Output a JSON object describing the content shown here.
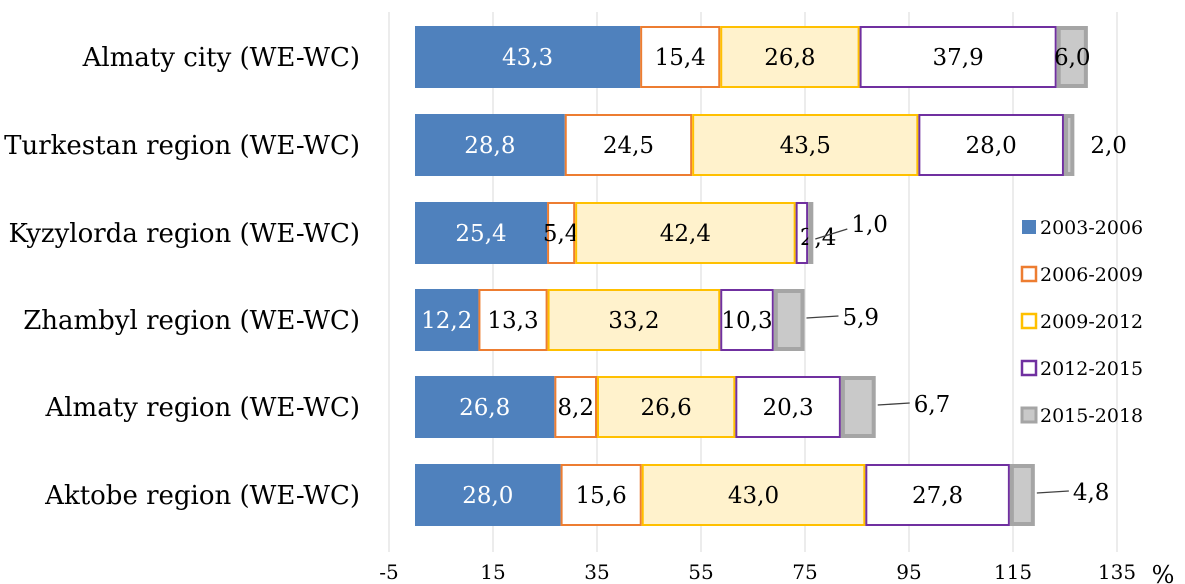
{
  "chart_data": {
    "type": "bar",
    "orientation": "horizontal",
    "stacked": true,
    "categories": [
      "Almaty city (WE-WC)",
      "Turkestan region (WE-WC)",
      "Kyzylorda region (WE-WC)",
      "Zhambyl region (WE-WC)",
      "Almaty  region (WE-WC)",
      "Aktobe region (WE-WC)"
    ],
    "series": [
      {
        "name": "2003-2006",
        "values": [
          43.3,
          28.8,
          25.4,
          12.2,
          26.8,
          28.0
        ],
        "labels": [
          "43,3",
          "28,8",
          "25,4",
          "12,2",
          "26,8",
          "28,0"
        ],
        "fill": "#4f81bd",
        "stroke": "#4f81bd",
        "label_color": "#ffffff",
        "legend_style": "filled"
      },
      {
        "name": "2006-2009",
        "values": [
          15.4,
          24.5,
          5.4,
          13.3,
          8.2,
          15.6
        ],
        "labels": [
          "15,4",
          "24,5",
          "5,4",
          "13,3",
          "8,2",
          "15,6"
        ],
        "fill": "#ffffff",
        "stroke": "#ed7d31",
        "label_color": "#000000",
        "legend_style": "outline"
      },
      {
        "name": "2009-2012",
        "values": [
          26.8,
          43.5,
          42.4,
          33.2,
          26.6,
          43.0
        ],
        "labels": [
          "26,8",
          "43,5",
          "42,4",
          "33,2",
          "26,6",
          "43,0"
        ],
        "fill": "#fff2cc",
        "stroke": "#ffc000",
        "label_color": "#000000",
        "legend_style": "outline"
      },
      {
        "name": "2012-2015",
        "values": [
          37.9,
          28.0,
          2.4,
          10.3,
          20.3,
          27.8
        ],
        "labels": [
          "37,9",
          "28,0",
          "2,4",
          "10,3",
          "20,3",
          "27,8"
        ],
        "fill": "#ffffff",
        "stroke": "#7030a0",
        "label_color": "#000000",
        "legend_style": "outline"
      },
      {
        "name": "2015-2018",
        "values": [
          6.0,
          2.0,
          1.0,
          5.9,
          6.7,
          4.8
        ],
        "labels": [
          "6,0",
          "2,0",
          "1,0",
          "5,9",
          "6,7",
          "4,8"
        ],
        "fill": "#c9c9c9",
        "stroke": "#a5a5a5",
        "label_color": "#000000",
        "legend_style": "filled"
      }
    ],
    "last_series_label_position": [
      "inside",
      "outside",
      "callout",
      "callout",
      "callout",
      "callout"
    ],
    "kyzylorda_2012_2015_label_position": "outside",
    "xlim": [
      -5,
      135
    ],
    "xticks": [
      -5,
      15,
      35,
      55,
      75,
      95,
      115,
      135
    ],
    "xtick_labels": [
      "-5",
      "15",
      "35",
      "55",
      "75",
      "95",
      "115",
      "135"
    ],
    "x_unit": "%",
    "gridlines": "vertical",
    "legend_position": "right"
  }
}
